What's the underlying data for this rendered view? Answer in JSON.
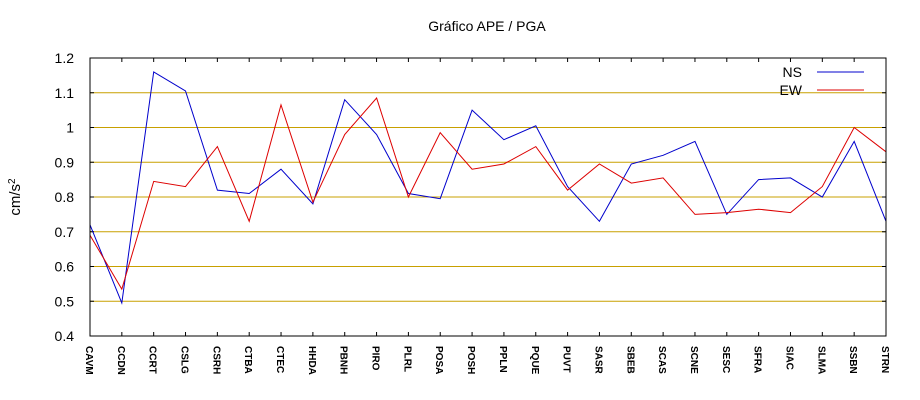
{
  "chart_data": {
    "type": "line",
    "title": "Gráfico  APE / PGA",
    "ylabel": "cm/s",
    "ylabel_sup": "2",
    "xlabel": "",
    "ylim": [
      0.4,
      1.2
    ],
    "yticks": [
      0.4,
      0.5,
      0.6,
      0.7,
      0.8,
      0.9,
      1.0,
      1.1,
      1.2
    ],
    "ytick_labels": [
      "0.4",
      "0.5",
      "0.6",
      "0.7",
      "0.8",
      "0.9",
      "1",
      "1.1",
      "1.2"
    ],
    "grid": "horizontal",
    "legend_position": "top-right",
    "categories": [
      "CAVM",
      "CCDN",
      "CCRT",
      "CSLG",
      "CSRH",
      "CTBA",
      "CTEC",
      "HHDA",
      "PBNH",
      "PIRO",
      "PLRL",
      "POSA",
      "POSH",
      "PPLN",
      "PQUE",
      "PUVT",
      "SASR",
      "SBEB",
      "SCAS",
      "SCNE",
      "SESC",
      "SFRA",
      "SIAC",
      "SLMA",
      "SSBN",
      "STRN"
    ],
    "series": [
      {
        "name": "NS",
        "color": "#0000cc",
        "values": [
          0.72,
          0.495,
          1.16,
          1.105,
          0.82,
          0.81,
          0.88,
          0.78,
          1.08,
          0.98,
          0.81,
          0.795,
          1.05,
          0.965,
          1.005,
          0.83,
          0.73,
          0.895,
          0.92,
          0.96,
          0.75,
          0.85,
          0.855,
          0.8,
          0.96,
          0.73
        ]
      },
      {
        "name": "EW",
        "color": "#dd0000",
        "values": [
          0.69,
          0.535,
          0.845,
          0.83,
          0.945,
          0.73,
          1.065,
          0.785,
          0.98,
          1.085,
          0.8,
          0.985,
          0.88,
          0.895,
          0.945,
          0.82,
          0.895,
          0.84,
          0.855,
          0.75,
          0.755,
          0.765,
          0.755,
          0.83,
          1.0,
          0.93
        ]
      }
    ],
    "colors": {
      "grid": "#c8a000",
      "axis": "#000000",
      "background": "#ffffff"
    }
  }
}
